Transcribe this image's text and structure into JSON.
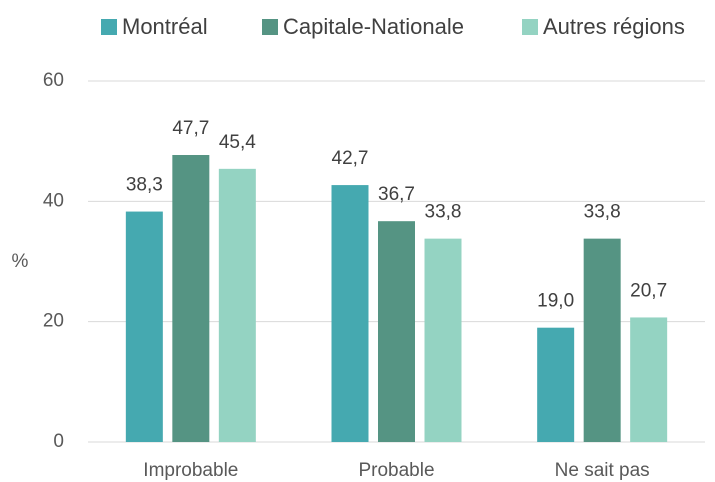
{
  "chart_data": {
    "type": "bar",
    "ylabel": "%",
    "categories": [
      "Improbable",
      "Probable",
      "Ne sait pas"
    ],
    "series": [
      {
        "name": "Montréal",
        "color": "#45a9b0",
        "values": [
          38.3,
          42.7,
          19.0
        ],
        "value_labels": [
          "38,3",
          "42,7",
          "19,0"
        ]
      },
      {
        "name": "Capitale-Nationale",
        "color": "#559483",
        "values": [
          47.7,
          36.7,
          33.8
        ],
        "value_labels": [
          "47,7",
          "36,7",
          "33,8"
        ]
      },
      {
        "name": "Autres régions",
        "color": "#94d3c2",
        "values": [
          45.4,
          33.8,
          20.7
        ],
        "value_labels": [
          "45,4",
          "33,8",
          "20,7"
        ]
      }
    ],
    "ylim": [
      0,
      60
    ],
    "yticks": [
      0,
      20,
      40,
      60
    ],
    "grid": true,
    "legend": "top"
  }
}
